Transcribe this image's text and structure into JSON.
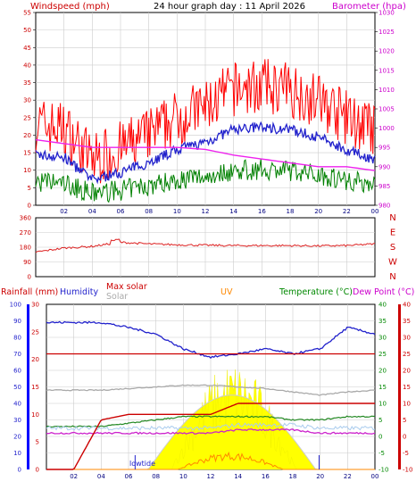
{
  "header": {
    "left_label": "Windspeed (mph)",
    "title": "24 hour graph day : 11 April 2026",
    "right_label": "Barometer (hpa)"
  },
  "wind_panel": {
    "left_ticks": [
      "0",
      "5",
      "10",
      "15",
      "20",
      "25",
      "30",
      "35",
      "40",
      "45",
      "50",
      "55"
    ],
    "right_ticks": [
      "980",
      "985",
      "990",
      "995",
      "1000",
      "1005",
      "1010",
      "1015",
      "1020",
      "1025",
      "1030"
    ],
    "x_ticks": [
      "02",
      "04",
      "06",
      "08",
      "10",
      "12",
      "14",
      "16",
      "18",
      "20",
      "22",
      "00"
    ]
  },
  "dir_panel": {
    "left_ticks": [
      "0",
      "90",
      "180",
      "270",
      "360"
    ],
    "compass": [
      "N",
      "W",
      "S",
      "E",
      "N"
    ]
  },
  "lower_panel": {
    "labels": {
      "rainfall": "Rainfall (mm)",
      "humidity": "Humidity",
      "max_solar": "Max solar",
      "solar": "Solar",
      "uv": "UV",
      "temperature": "Temperature (°C)",
      "dew_point": "Dew Point (°C)"
    },
    "humidity_ticks": [
      "0",
      "10",
      "20",
      "30",
      "40",
      "50",
      "60",
      "70",
      "80",
      "90",
      "100"
    ],
    "rain_ticks": [
      "0",
      "5",
      "10",
      "15",
      "20",
      "25",
      "30"
    ],
    "temp_ticks_a": [
      "-10",
      "-5",
      "0",
      "5",
      "10",
      "15",
      "20",
      "25",
      "30",
      "35",
      "40"
    ],
    "temp_ticks_b": [
      "-10",
      "-5",
      "0",
      "5",
      "10",
      "15",
      "20",
      "25",
      "30",
      "35",
      "40"
    ],
    "x_ticks": [
      "02",
      "04",
      "06",
      "08",
      "10",
      "12",
      "14",
      "16",
      "18",
      "20",
      "22",
      "00"
    ],
    "lowtide_label": "lowtide"
  },
  "colors": {
    "wind": "#ff0000",
    "gust": "#ff0000",
    "avg_wind": "#2222cc",
    "low_wind": "#008000",
    "barometer": "#ee22ee",
    "direction": "#dd2222",
    "humidity": "#2222cc",
    "rain": "#cc0000",
    "temperature": "#228822",
    "dew_point": "#cc22cc",
    "solar": "#aaaaaa",
    "max_solar": "#ffff00",
    "uv": "#ff8800",
    "hum_axis": "#0000ff"
  },
  "chart_data": [
    {
      "type": "line",
      "xlabel": "",
      "ylabel": "Windspeed (mph)",
      "x": [
        "00",
        "02",
        "04",
        "06",
        "08",
        "10",
        "12",
        "14",
        "16",
        "18",
        "20",
        "22",
        "00"
      ],
      "ylim": [
        0,
        55
      ],
      "y2lim": [
        980,
        1030
      ],
      "series": [
        {
          "name": "Windspeed (mph)",
          "values": [
            20,
            19,
            10,
            13,
            17,
            22,
            25,
            30,
            31,
            30,
            27,
            22,
            18
          ]
        },
        {
          "name": "Barometer (hpa)",
          "axis": "right",
          "values": [
            997,
            996,
            995,
            995,
            995,
            995,
            994.5,
            993,
            992,
            991,
            990,
            990,
            989
          ]
        }
      ]
    },
    {
      "type": "line",
      "ylim": [
        0,
        360
      ],
      "x": [
        "00",
        "02",
        "04",
        "06",
        "08",
        "10",
        "12",
        "14",
        "16",
        "18",
        "20",
        "22",
        "00"
      ],
      "series": [
        {
          "name": "direction",
          "values": [
            150,
            175,
            185,
            210,
            200,
            195,
            192,
            190,
            190,
            190,
            188,
            190,
            200
          ]
        }
      ]
    },
    {
      "type": "line",
      "ylim": [
        0,
        100
      ],
      "x": [
        "00",
        "02",
        "04",
        "06",
        "08",
        "10",
        "12",
        "14",
        "16",
        "18",
        "20",
        "22",
        "00"
      ],
      "series": [
        {
          "name": "Humidity",
          "values": [
            89,
            89,
            89,
            86,
            82,
            73,
            68,
            70,
            73,
            70,
            73,
            86,
            82
          ]
        },
        {
          "name": "Rainfall (mm)",
          "axis": "rain",
          "values": [
            0,
            0,
            9,
            10,
            10,
            10,
            10,
            12,
            12,
            12,
            12,
            12,
            12
          ]
        },
        {
          "name": "Temperature (°C)",
          "axis": "temp",
          "values": [
            3,
            3,
            3,
            4,
            5,
            6,
            6,
            6,
            6,
            5,
            5,
            6,
            6
          ]
        },
        {
          "name": "Dew Point (°C)",
          "axis": "temp",
          "values": [
            1,
            1,
            1,
            1,
            1,
            1,
            1,
            2,
            2,
            2,
            1,
            1,
            1
          ]
        },
        {
          "name": "Solar",
          "values": [
            48,
            48,
            48,
            49,
            50,
            51,
            51,
            50,
            49,
            47,
            45,
            47,
            48
          ]
        },
        {
          "name": "Max solar",
          "values": [
            0,
            0,
            0,
            0,
            0,
            15,
            40,
            60,
            40,
            15,
            0,
            0,
            0
          ]
        },
        {
          "name": "UV",
          "values": [
            0,
            0,
            0,
            0,
            0,
            2,
            8,
            12,
            8,
            2,
            0,
            0,
            0
          ]
        }
      ]
    }
  ]
}
